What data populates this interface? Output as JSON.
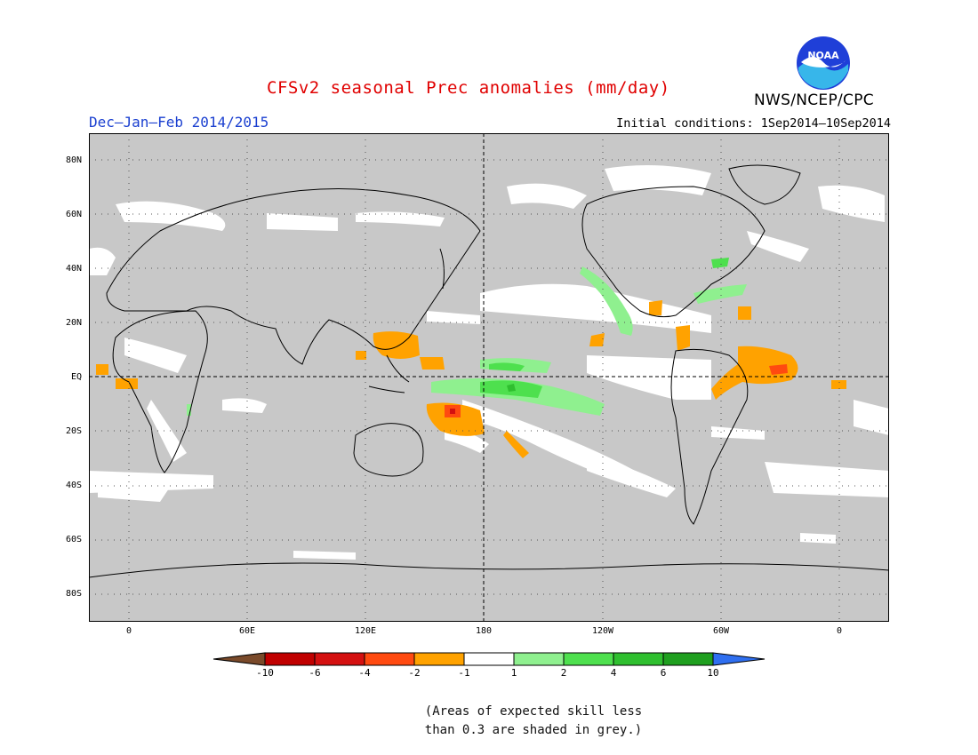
{
  "header": {
    "title": "CFSv2 seasonal Prec anomalies (mm/day)",
    "season": "Dec–Jan–Feb 2014/2015",
    "initial_conditions": "Initial conditions: 1Sep2014–10Sep2014",
    "agency": "NWS/NCEP/CPC",
    "logo_text": "NOAA"
  },
  "map": {
    "lat_labels": [
      "80N",
      "60N",
      "40N",
      "20N",
      "EQ",
      "20S",
      "40S",
      "60S",
      "80S"
    ],
    "lon_labels": [
      "0",
      "60E",
      "120E",
      "180",
      "120W",
      "60W",
      "0"
    ],
    "skill_shading_color": "#c8c8c8",
    "background_color": "#ffffff"
  },
  "legend": {
    "tick_labels": [
      "-10",
      "-6",
      "-4",
      "-2",
      "-1",
      "1",
      "2",
      "4",
      "6",
      "10"
    ],
    "colors": [
      "#7a4a2a",
      "#c00000",
      "#d41010",
      "#ff4a10",
      "#ffa200",
      "#ffffff",
      "#8ff08f",
      "#4ee04e",
      "#2fbf2f",
      "#1f9f1f",
      "#2f6ff0"
    ]
  },
  "footnote": {
    "line1": "(Areas of expected skill less",
    "line2": "than 0.3 are shaded in grey.)"
  }
}
